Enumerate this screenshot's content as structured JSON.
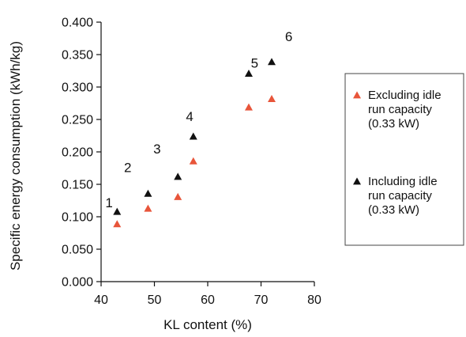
{
  "chart_data": {
    "type": "scatter",
    "title": "",
    "xlabel": "KL content (%)",
    "ylabel": "Specific energy consumption (kWh/kg)",
    "xlim": [
      40,
      80
    ],
    "ylim": [
      0.0,
      0.4
    ],
    "xticks": [
      "40",
      "50",
      "60",
      "70",
      "80"
    ],
    "yticks": [
      "0.000",
      "0.050",
      "0.100",
      "0.150",
      "0.200",
      "0.250",
      "0.300",
      "0.350",
      "0.400"
    ],
    "grid": false,
    "legend_position": "right",
    "series": [
      {
        "name": "Excluding idle run capacity (0.33 kW)",
        "legend_lines": [
          "Excluding  idle",
          "run capacity",
          "(0.33 kW)"
        ],
        "color": "#e8553a",
        "marker": "triangle",
        "x": [
          43.0,
          48.8,
          54.4,
          57.3,
          67.7,
          72.0
        ],
        "y": [
          0.088,
          0.112,
          0.13,
          0.185,
          0.268,
          0.281
        ]
      },
      {
        "name": "Including idle run capacity (0.33 kW)",
        "legend_lines": [
          "Including idle",
          "run capacity",
          "(0.33 kW)"
        ],
        "color": "#111111",
        "marker": "triangle",
        "x": [
          43.0,
          48.8,
          54.4,
          57.3,
          67.7,
          72.0
        ],
        "y": [
          0.107,
          0.135,
          0.161,
          0.223,
          0.32,
          0.338
        ]
      }
    ],
    "annotations": [
      {
        "text": "1",
        "x": 41.5,
        "y": 0.122
      },
      {
        "text": "2",
        "x": 45.0,
        "y": 0.176
      },
      {
        "text": "3",
        "x": 50.5,
        "y": 0.205
      },
      {
        "text": "4",
        "x": 56.6,
        "y": 0.255
      },
      {
        "text": "5",
        "x": 68.8,
        "y": 0.337
      },
      {
        "text": "6",
        "x": 75.2,
        "y": 0.378
      }
    ]
  }
}
